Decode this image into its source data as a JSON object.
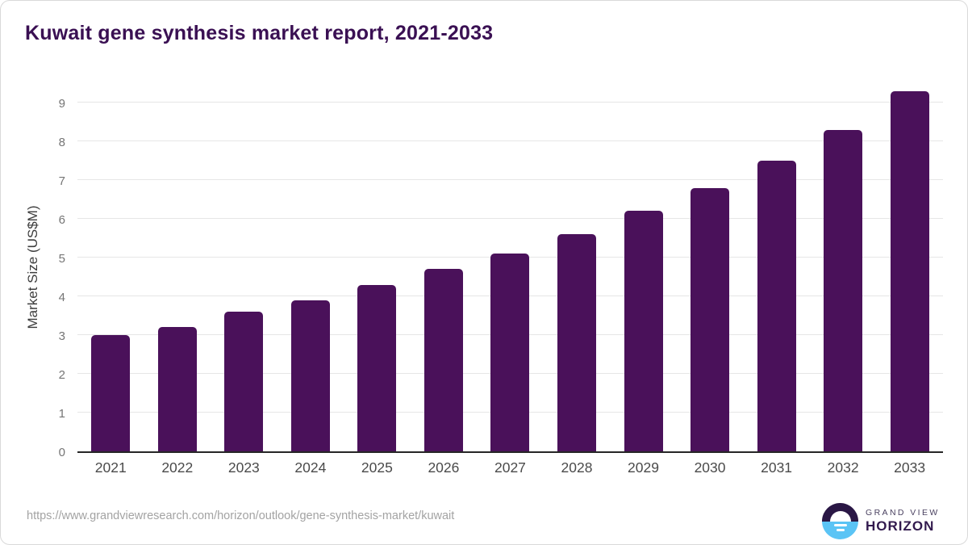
{
  "page": {
    "title": "Kuwait gene synthesis market report, 2021-2033",
    "source_url": "https://www.grandviewresearch.com/horizon/outlook/gene-synthesis-market/kuwait"
  },
  "chart_data": {
    "type": "bar",
    "title": "Kuwait gene synthesis market report, 2021-2033",
    "categories": [
      "2021",
      "2022",
      "2023",
      "2024",
      "2025",
      "2026",
      "2027",
      "2028",
      "2029",
      "2030",
      "2031",
      "2032",
      "2033"
    ],
    "values": [
      3.0,
      3.2,
      3.6,
      3.9,
      4.3,
      4.7,
      5.1,
      5.6,
      6.2,
      6.8,
      7.5,
      8.3,
      9.3
    ],
    "xlabel": "",
    "ylabel": "Market Size (US$M)",
    "ylim": [
      0,
      9.6
    ],
    "yticks": [
      0,
      1,
      2,
      3,
      4,
      5,
      6,
      7,
      8,
      9
    ],
    "grid": true,
    "legend": "none",
    "bar_color": "#4A115A",
    "gridline_color": "#e6e6e6",
    "axis_line_color": "#262626",
    "tick_label_color": "#757575",
    "x_label_color": "#4a4a4a",
    "title_color": "#3A1053"
  },
  "branding": {
    "logo_top_text": "GRAND VIEW",
    "logo_bottom_text": "HORIZON",
    "logo_dark_color": "#2A1745",
    "logo_blue_color": "#5BC4F5"
  }
}
